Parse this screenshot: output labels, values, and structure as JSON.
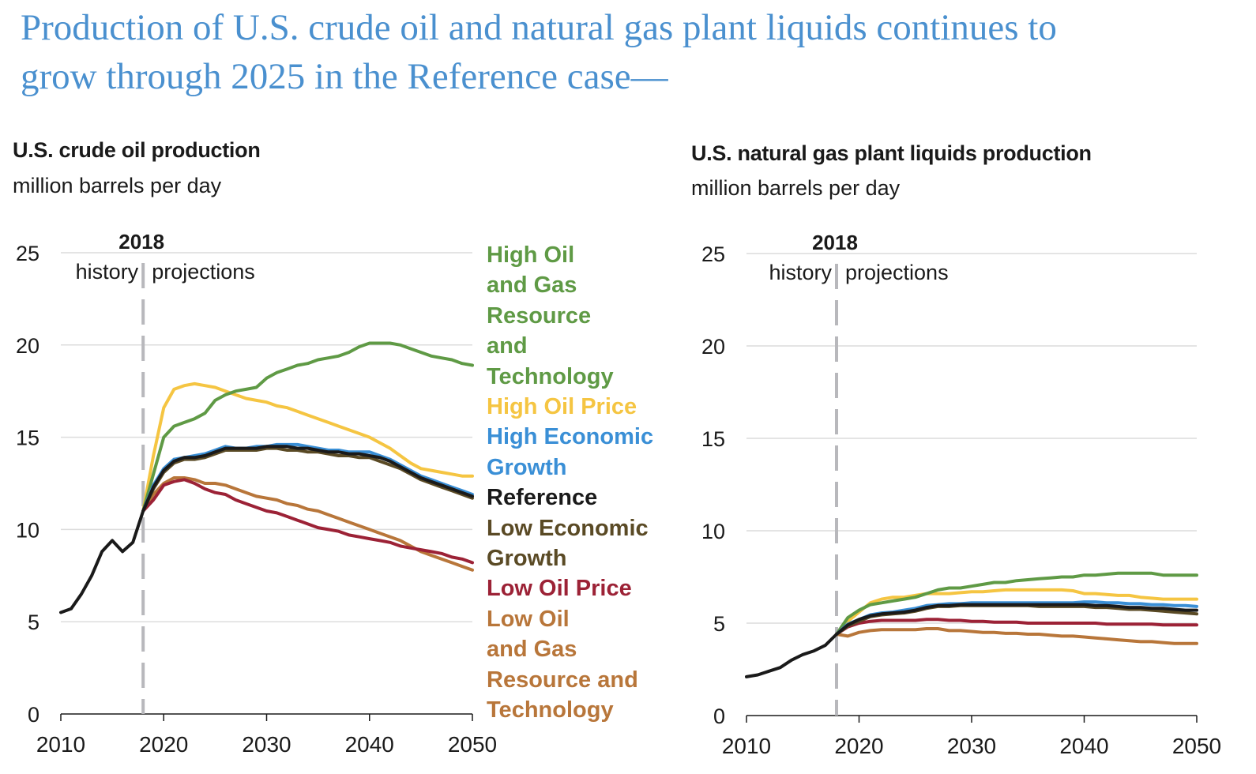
{
  "headline": {
    "line1": "Production of U.S. crude oil and natural gas plant liquids continues to",
    "line2": "grow through 2025 in the Reference case—"
  },
  "series_colors": {
    "High Oil and Gas Resource and Technology": "#5f9a45",
    "High Oil Price": "#f5c542",
    "High Economic Growth": "#3a8fd6",
    "Reference": "#1a1a1a",
    "Low Economic Growth": "#5a4a25",
    "Low Oil Price": "#9c2236",
    "Low Oil and Gas Resource and Technology": "#b8763a"
  },
  "legend": [
    {
      "series": "High Oil and Gas Resource and Technology",
      "lines": [
        "High Oil",
        "and Gas",
        "Resource",
        "and",
        "Technology"
      ],
      "color": "#5f9a45"
    },
    {
      "series": "High Oil Price",
      "lines": [
        "High Oil Price"
      ],
      "color": "#f5c542"
    },
    {
      "series": "High Economic Growth",
      "lines": [
        "High Economic",
        "Growth"
      ],
      "color": "#3a8fd6"
    },
    {
      "series": "Reference",
      "lines": [
        "Reference"
      ],
      "color": "#1a1a1a"
    },
    {
      "series": "Low Economic Growth",
      "lines": [
        "Low Economic",
        "Growth"
      ],
      "color": "#5a4a25"
    },
    {
      "series": "Low Oil Price",
      "lines": [
        "Low Oil Price"
      ],
      "color": "#9c2236"
    },
    {
      "series": "Low Oil and Gas Resource and Technology",
      "lines": [
        "Low Oil",
        "and Gas",
        "Resource and",
        "Technology"
      ],
      "color": "#b8763a"
    }
  ],
  "chart_data": [
    {
      "type": "line",
      "title": "U.S. crude oil production",
      "subtitle": "million barrels per day",
      "xlabel": "",
      "ylabel": "million barrels per day",
      "xlim": [
        2010,
        2050
      ],
      "ylim": [
        0,
        25
      ],
      "xticks": [
        2010,
        2020,
        2030,
        2040,
        2050
      ],
      "yticks": [
        0,
        5,
        10,
        15,
        20,
        25
      ],
      "grid": true,
      "legend_position": "right",
      "annotations": {
        "divider_year": 2018,
        "divider_label": "2018",
        "left_label": "history",
        "right_label": "projections"
      },
      "history": {
        "name": "History",
        "x": [
          2010,
          2011,
          2012,
          2013,
          2014,
          2015,
          2016,
          2017,
          2018
        ],
        "values": [
          5.5,
          5.7,
          6.5,
          7.5,
          8.8,
          9.4,
          8.8,
          9.3,
          11.0
        ]
      },
      "x": [
        2018,
        2019,
        2020,
        2021,
        2022,
        2023,
        2024,
        2025,
        2026,
        2027,
        2028,
        2029,
        2030,
        2031,
        2032,
        2033,
        2034,
        2035,
        2036,
        2037,
        2038,
        2039,
        2040,
        2041,
        2042,
        2043,
        2044,
        2045,
        2046,
        2047,
        2048,
        2049,
        2050
      ],
      "series": [
        {
          "name": "High Oil and Gas Resource and Technology",
          "values": [
            11.0,
            13.0,
            15.0,
            15.6,
            15.8,
            16.0,
            16.3,
            17.0,
            17.3,
            17.5,
            17.6,
            17.7,
            18.2,
            18.5,
            18.7,
            18.9,
            19.0,
            19.2,
            19.3,
            19.4,
            19.6,
            19.9,
            20.1,
            20.1,
            20.1,
            20.0,
            19.8,
            19.6,
            19.4,
            19.3,
            19.2,
            19.0,
            18.9
          ]
        },
        {
          "name": "High Oil Price",
          "values": [
            11.0,
            14.0,
            16.6,
            17.6,
            17.8,
            17.9,
            17.8,
            17.7,
            17.5,
            17.3,
            17.1,
            17.0,
            16.9,
            16.7,
            16.6,
            16.4,
            16.2,
            16.0,
            15.8,
            15.6,
            15.4,
            15.2,
            15.0,
            14.7,
            14.4,
            14.0,
            13.6,
            13.3,
            13.2,
            13.1,
            13.0,
            12.9,
            12.9
          ]
        },
        {
          "name": "High Economic Growth",
          "values": [
            11.0,
            12.4,
            13.3,
            13.8,
            13.9,
            14.0,
            14.1,
            14.3,
            14.5,
            14.4,
            14.4,
            14.5,
            14.5,
            14.6,
            14.6,
            14.6,
            14.5,
            14.4,
            14.3,
            14.3,
            14.2,
            14.2,
            14.2,
            14.0,
            13.8,
            13.5,
            13.2,
            12.9,
            12.7,
            12.5,
            12.3,
            12.1,
            11.9
          ]
        },
        {
          "name": "Reference",
          "values": [
            11.0,
            12.3,
            13.2,
            13.7,
            13.9,
            13.9,
            14.0,
            14.2,
            14.4,
            14.4,
            14.4,
            14.4,
            14.5,
            14.5,
            14.5,
            14.4,
            14.4,
            14.3,
            14.2,
            14.2,
            14.1,
            14.1,
            14.0,
            13.9,
            13.7,
            13.4,
            13.1,
            12.8,
            12.6,
            12.4,
            12.2,
            12.0,
            11.8
          ]
        },
        {
          "name": "Low Economic Growth",
          "values": [
            11.0,
            12.2,
            13.1,
            13.6,
            13.8,
            13.8,
            13.9,
            14.1,
            14.3,
            14.3,
            14.3,
            14.3,
            14.4,
            14.4,
            14.3,
            14.3,
            14.2,
            14.2,
            14.1,
            14.0,
            14.0,
            13.9,
            13.9,
            13.7,
            13.5,
            13.3,
            13.0,
            12.7,
            12.5,
            12.3,
            12.1,
            11.9,
            11.7
          ]
        },
        {
          "name": "Low Oil Price",
          "values": [
            11.0,
            11.6,
            12.4,
            12.6,
            12.7,
            12.5,
            12.2,
            12.0,
            11.9,
            11.6,
            11.4,
            11.2,
            11.0,
            10.9,
            10.7,
            10.5,
            10.3,
            10.1,
            10.0,
            9.9,
            9.7,
            9.6,
            9.5,
            9.4,
            9.3,
            9.1,
            9.0,
            8.9,
            8.8,
            8.7,
            8.5,
            8.4,
            8.2
          ]
        },
        {
          "name": "Low Oil and Gas Resource and Technology",
          "values": [
            11.0,
            11.9,
            12.5,
            12.8,
            12.8,
            12.7,
            12.5,
            12.5,
            12.4,
            12.2,
            12.0,
            11.8,
            11.7,
            11.6,
            11.4,
            11.3,
            11.1,
            11.0,
            10.8,
            10.6,
            10.4,
            10.2,
            10.0,
            9.8,
            9.6,
            9.4,
            9.1,
            8.8,
            8.6,
            8.4,
            8.2,
            8.0,
            7.8
          ]
        }
      ]
    },
    {
      "type": "line",
      "title": "U.S. natural gas plant liquids production",
      "subtitle": "million barrels per day",
      "xlabel": "",
      "ylabel": "million barrels per day",
      "xlim": [
        2010,
        2050
      ],
      "ylim": [
        0,
        25
      ],
      "xticks": [
        2010,
        2020,
        2030,
        2040,
        2050
      ],
      "yticks": [
        0,
        5,
        10,
        15,
        20,
        25
      ],
      "grid": true,
      "legend_position": "none",
      "annotations": {
        "divider_year": 2018,
        "divider_label": "2018",
        "left_label": "history",
        "right_label": "projections"
      },
      "history": {
        "name": "History",
        "x": [
          2010,
          2011,
          2012,
          2013,
          2014,
          2015,
          2016,
          2017,
          2018
        ],
        "values": [
          2.1,
          2.2,
          2.4,
          2.6,
          3.0,
          3.3,
          3.5,
          3.8,
          4.4
        ]
      },
      "x": [
        2018,
        2019,
        2020,
        2021,
        2022,
        2023,
        2024,
        2025,
        2026,
        2027,
        2028,
        2029,
        2030,
        2031,
        2032,
        2033,
        2034,
        2035,
        2036,
        2037,
        2038,
        2039,
        2040,
        2041,
        2042,
        2043,
        2044,
        2045,
        2046,
        2047,
        2048,
        2049,
        2050
      ],
      "series": [
        {
          "name": "High Oil and Gas Resource and Technology",
          "values": [
            4.4,
            5.3,
            5.7,
            6.0,
            6.1,
            6.2,
            6.3,
            6.4,
            6.6,
            6.8,
            6.9,
            6.9,
            7.0,
            7.1,
            7.2,
            7.2,
            7.3,
            7.35,
            7.4,
            7.45,
            7.5,
            7.5,
            7.6,
            7.6,
            7.65,
            7.7,
            7.7,
            7.7,
            7.7,
            7.6,
            7.6,
            7.6,
            7.6
          ]
        },
        {
          "name": "High Oil Price",
          "values": [
            4.4,
            5.1,
            5.6,
            6.1,
            6.3,
            6.4,
            6.4,
            6.5,
            6.6,
            6.6,
            6.6,
            6.65,
            6.7,
            6.7,
            6.75,
            6.8,
            6.8,
            6.8,
            6.8,
            6.8,
            6.8,
            6.75,
            6.6,
            6.6,
            6.55,
            6.5,
            6.5,
            6.4,
            6.35,
            6.3,
            6.3,
            6.3,
            6.3
          ]
        },
        {
          "name": "High Economic Growth",
          "values": [
            4.4,
            4.95,
            5.2,
            5.45,
            5.55,
            5.6,
            5.7,
            5.8,
            5.95,
            6.0,
            6.05,
            6.05,
            6.1,
            6.1,
            6.1,
            6.1,
            6.1,
            6.1,
            6.1,
            6.1,
            6.1,
            6.1,
            6.15,
            6.15,
            6.1,
            6.1,
            6.05,
            6.05,
            6.0,
            6.0,
            5.95,
            5.95,
            5.9
          ]
        },
        {
          "name": "Reference",
          "values": [
            4.4,
            4.9,
            5.2,
            5.4,
            5.5,
            5.55,
            5.6,
            5.7,
            5.85,
            5.95,
            5.95,
            6.0,
            6.0,
            6.0,
            6.0,
            6.0,
            6.0,
            6.0,
            6.0,
            6.0,
            6.0,
            6.0,
            6.0,
            5.95,
            5.95,
            5.9,
            5.85,
            5.85,
            5.8,
            5.8,
            5.75,
            5.7,
            5.7
          ]
        },
        {
          "name": "Low Economic Growth",
          "values": [
            4.4,
            4.85,
            5.1,
            5.35,
            5.45,
            5.5,
            5.55,
            5.65,
            5.8,
            5.9,
            5.9,
            5.95,
            5.95,
            5.95,
            5.95,
            5.95,
            5.95,
            5.95,
            5.9,
            5.9,
            5.9,
            5.9,
            5.9,
            5.85,
            5.85,
            5.8,
            5.75,
            5.75,
            5.7,
            5.65,
            5.6,
            5.55,
            5.5
          ]
        },
        {
          "name": "Low Oil Price",
          "values": [
            4.4,
            4.8,
            5.0,
            5.1,
            5.15,
            5.15,
            5.15,
            5.15,
            5.2,
            5.2,
            5.15,
            5.15,
            5.1,
            5.1,
            5.05,
            5.05,
            5.05,
            5.0,
            5.0,
            5.0,
            5.0,
            5.0,
            5.0,
            5.0,
            4.95,
            4.95,
            4.95,
            4.95,
            4.95,
            4.9,
            4.9,
            4.9,
            4.9
          ]
        },
        {
          "name": "Low Oil and Gas Resource and Technology",
          "values": [
            4.4,
            4.3,
            4.5,
            4.6,
            4.65,
            4.65,
            4.65,
            4.65,
            4.7,
            4.7,
            4.6,
            4.6,
            4.55,
            4.5,
            4.5,
            4.45,
            4.45,
            4.4,
            4.4,
            4.35,
            4.3,
            4.3,
            4.25,
            4.2,
            4.15,
            4.1,
            4.05,
            4.0,
            4.0,
            3.95,
            3.9,
            3.9,
            3.9
          ]
        }
      ]
    }
  ]
}
